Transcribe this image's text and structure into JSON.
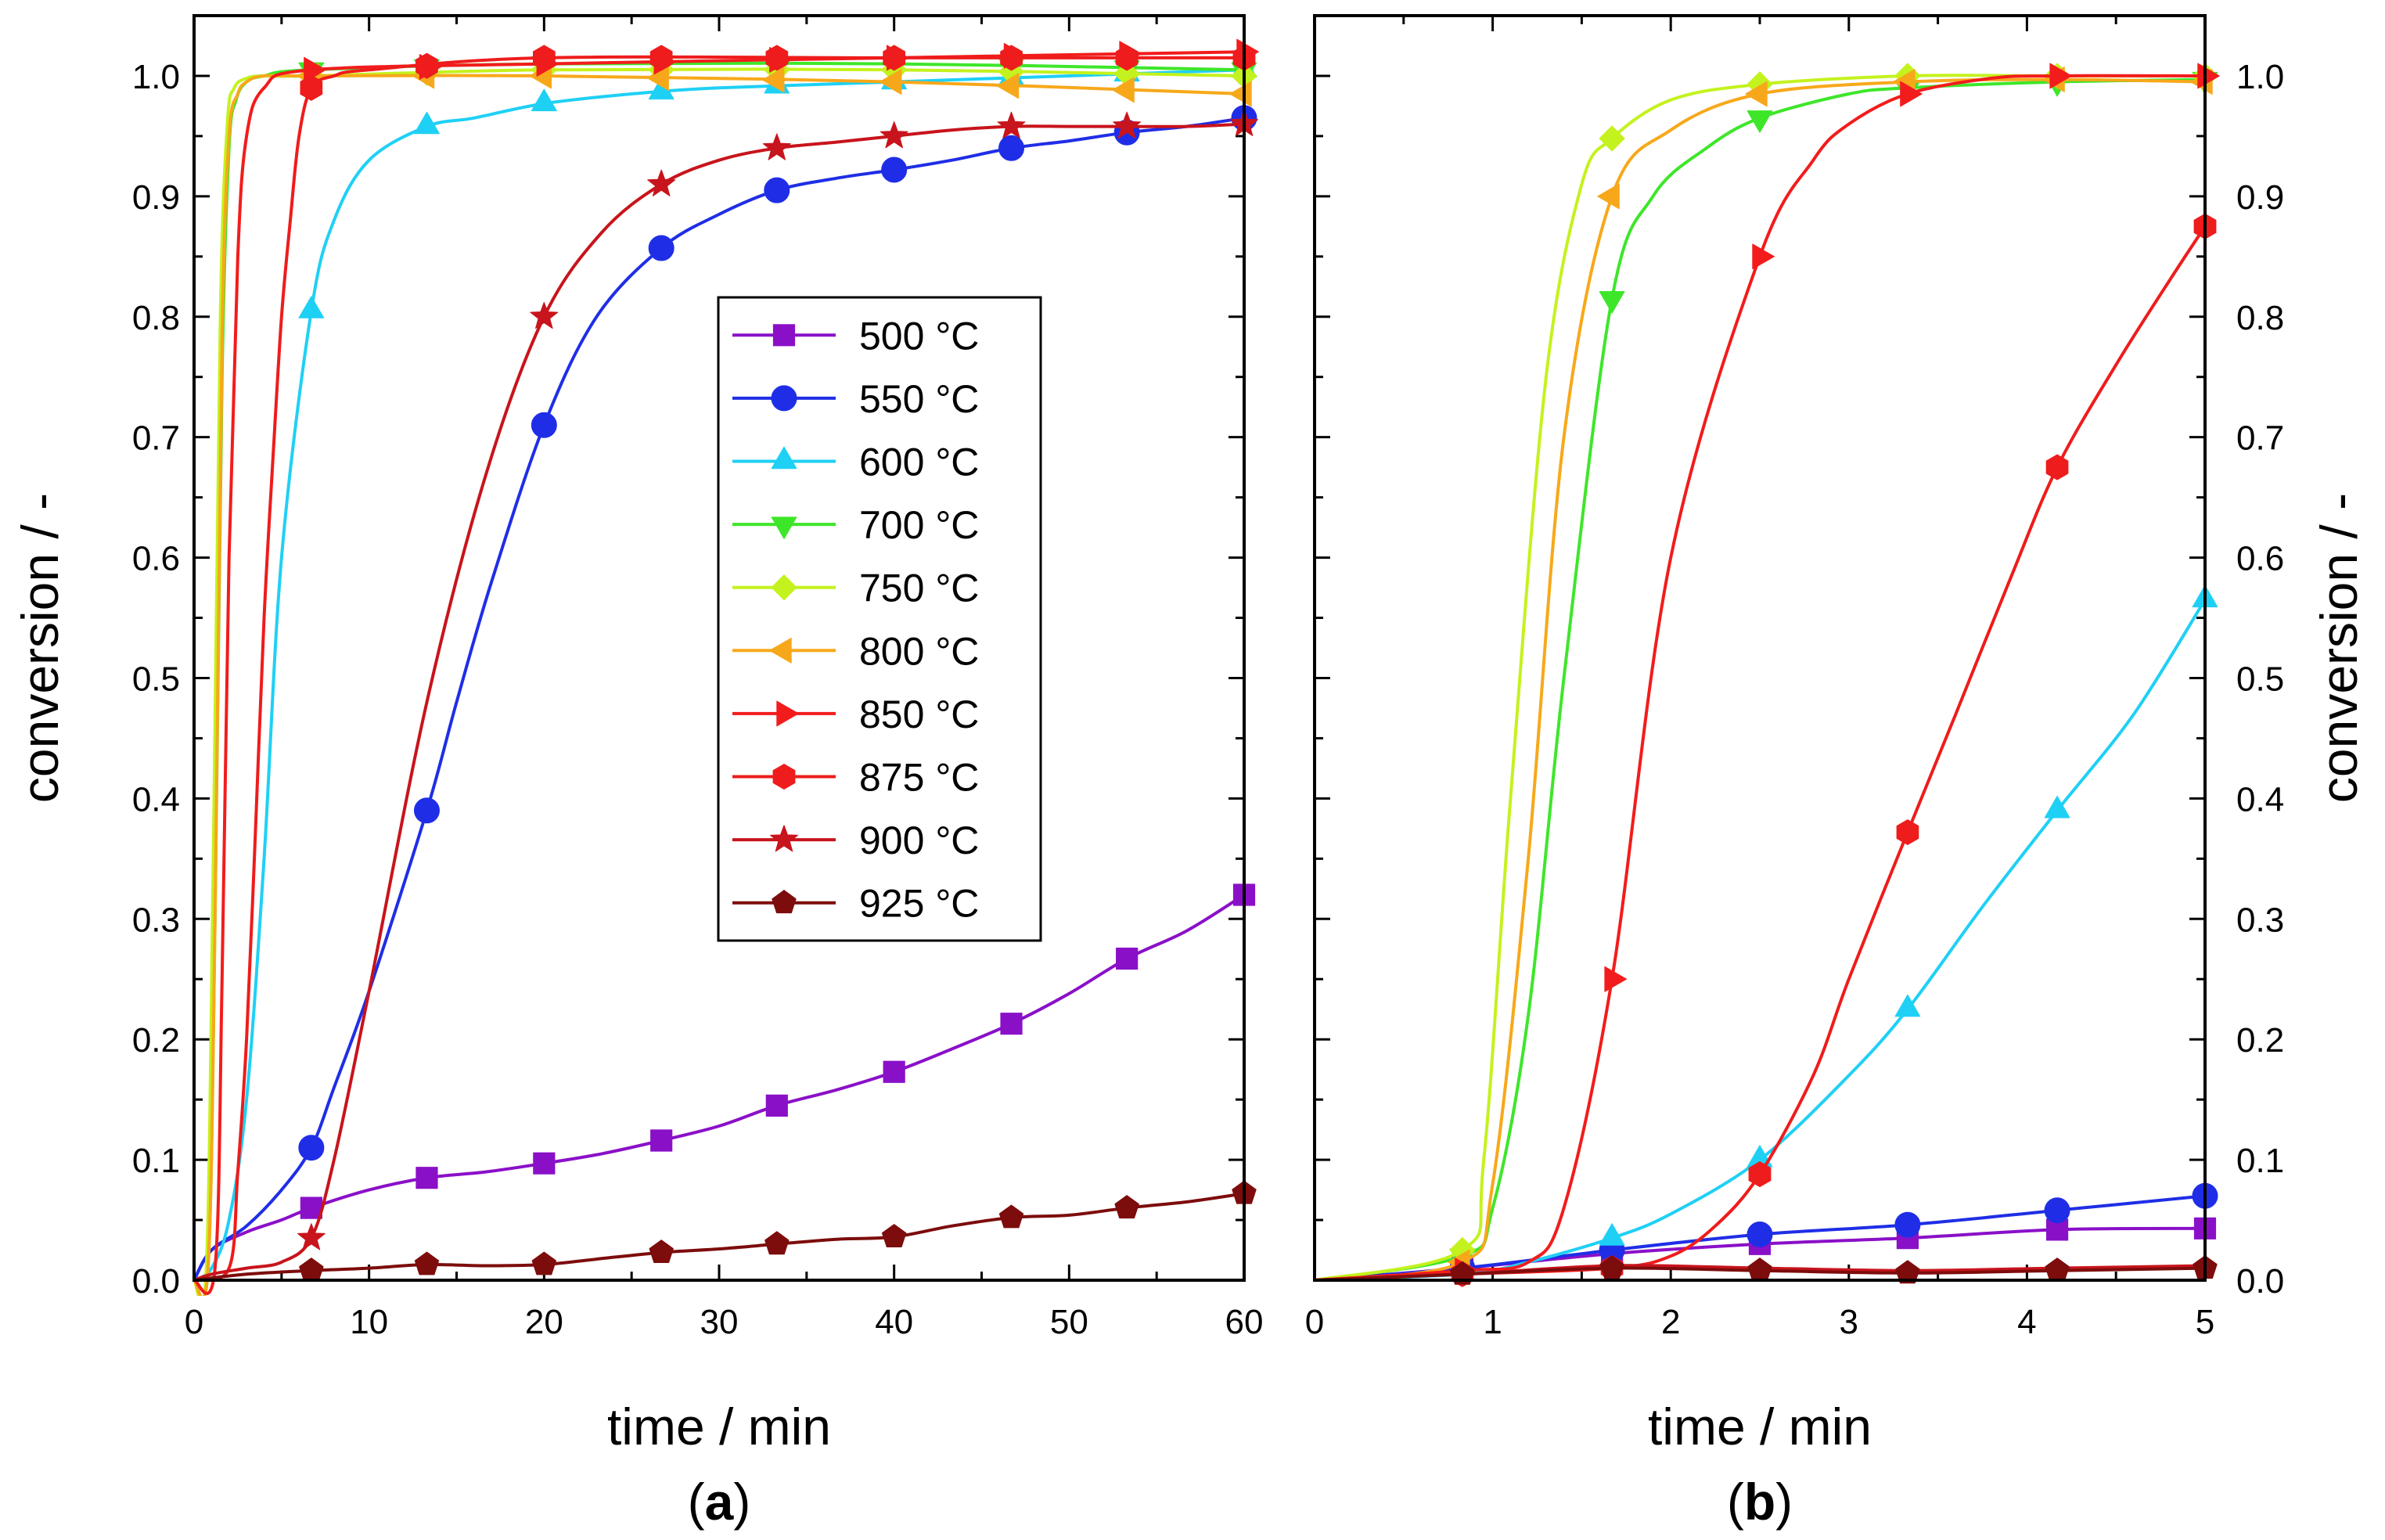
{
  "colors": {
    "500 °C": "#8a10c8",
    "550 °C": "#1f2ee6",
    "600 °C": "#1fd0f5",
    "700 °C": "#3ee62a",
    "750 °C": "#c4f21e",
    "800 °C": "#f7a81a",
    "850 °C": "#f21c1c",
    "875 °C": "#ee1c1c",
    "900 °C": "#c8141c",
    "925 °C": "#7d0c0c"
  },
  "chart_data": [
    {
      "type": "line",
      "panel_label": [
        "(",
        "a",
        ")"
      ],
      "xlabel": "time / min",
      "ylabel": "conversion / -",
      "xlim": [
        0,
        60
      ],
      "ylim": [
        0,
        1.05
      ],
      "xticks": [
        "0",
        "10",
        "20",
        "30",
        "40",
        "50",
        "60"
      ],
      "yticks": [
        "0.0",
        "0.1",
        "0.2",
        "0.3",
        "0.4",
        "0.5",
        "0.6",
        "0.7",
        "0.8",
        "0.9",
        "1.0"
      ],
      "legend": {
        "placement": "center",
        "entries": [
          "500 °C",
          "550 °C",
          "600 °C",
          "700 °C",
          "750 °C",
          "800 °C",
          "850 °C",
          "875 °C",
          "900 °C",
          "925 °C"
        ]
      },
      "series": [
        {
          "name": "500 °C",
          "marker": "square",
          "x": [
            0,
            1,
            3,
            5,
            6.7,
            10,
            13.3,
            16.7,
            20,
            23.3,
            26.7,
            30,
            33.3,
            36.7,
            40,
            43.3,
            46.7,
            50,
            53.3,
            56.7,
            60
          ],
          "y": [
            0.0,
            0.025,
            0.04,
            0.05,
            0.06,
            0.075,
            0.085,
            0.09,
            0.097,
            0.105,
            0.116,
            0.128,
            0.145,
            0.158,
            0.173,
            0.192,
            0.213,
            0.238,
            0.267,
            0.29,
            0.32
          ],
          "markers_x": [
            6.7,
            13.3,
            20,
            26.7,
            33.3,
            40,
            46.7,
            53.3,
            60
          ]
        },
        {
          "name": "550 °C",
          "marker": "circle",
          "x": [
            0,
            1,
            3,
            5,
            6.7,
            8,
            10,
            13.3,
            15,
            17,
            20,
            23,
            26.7,
            30,
            33.3,
            36.7,
            40,
            43.3,
            46.7,
            50,
            53.3,
            56.7,
            60
          ],
          "y": [
            0.0,
            0.025,
            0.045,
            0.075,
            0.11,
            0.16,
            0.24,
            0.39,
            0.48,
            0.58,
            0.71,
            0.8,
            0.857,
            0.885,
            0.905,
            0.915,
            0.922,
            0.93,
            0.94,
            0.946,
            0.953,
            0.958,
            0.965
          ],
          "markers_x": [
            6.7,
            13.3,
            20,
            26.7,
            33.3,
            40,
            46.7,
            53.3,
            60
          ]
        },
        {
          "name": "600 °C",
          "marker": "triangle-up",
          "x": [
            0,
            1,
            2,
            3,
            4,
            5,
            6.7,
            8,
            10,
            13.3,
            16,
            20,
            25,
            30,
            40,
            50,
            60
          ],
          "y": [
            0.0,
            0.01,
            0.05,
            0.15,
            0.35,
            0.6,
            0.805,
            0.88,
            0.93,
            0.958,
            0.965,
            0.977,
            0.985,
            0.99,
            0.995,
            1.0,
            1.005
          ],
          "markers_x": [
            6.7,
            13.3,
            20,
            26.7,
            33.3,
            40,
            46.7,
            53.3,
            60
          ]
        },
        {
          "name": "700 °C",
          "marker": "triangle-down",
          "x": [
            0,
            0.8,
            1.2,
            1.6,
            2,
            2.4,
            3,
            4,
            6.7,
            20,
            40,
            60
          ],
          "y": [
            0.0,
            0.01,
            0.3,
            0.75,
            0.94,
            0.98,
            0.995,
            1.0,
            1.005,
            1.01,
            1.01,
            1.005
          ],
          "markers_x": [
            6.7,
            13.3,
            20,
            26.7,
            33.3,
            40,
            46.7,
            53.3,
            60
          ]
        },
        {
          "name": "750 °C",
          "marker": "diamond",
          "x": [
            0,
            0.7,
            1.1,
            1.5,
            1.9,
            2.3,
            3,
            4,
            6.7,
            20,
            40,
            60
          ],
          "y": [
            0.0,
            0.01,
            0.35,
            0.8,
            0.96,
            0.99,
            0.998,
            1.0,
            1.0,
            1.005,
            1.005,
            1.0
          ],
          "markers_x": [
            6.7,
            13.3,
            20,
            26.7,
            33.3,
            40,
            46.7,
            53.3,
            60
          ]
        },
        {
          "name": "800 °C",
          "marker": "triangle-left",
          "x": [
            0,
            0.8,
            1.2,
            1.6,
            2,
            2.5,
            3,
            4,
            6.7,
            20,
            40,
            60
          ],
          "y": [
            0.0,
            0.01,
            0.3,
            0.78,
            0.95,
            0.985,
            0.995,
            1.0,
            1.0,
            1.0,
            0.995,
            0.985
          ],
          "markers_x": [
            6.7,
            13.3,
            20,
            26.7,
            33.3,
            40,
            46.7,
            53.3,
            60
          ]
        },
        {
          "name": "850 °C",
          "marker": "triangle-right",
          "x": [
            0,
            1.2,
            1.6,
            2,
            2.5,
            3,
            4,
            6.7,
            20,
            40,
            60
          ],
          "y": [
            0.0,
            0.01,
            0.25,
            0.6,
            0.85,
            0.95,
            0.99,
            1.005,
            1.01,
            1.015,
            1.02
          ],
          "markers_x": [
            6.7,
            13.3,
            20,
            26.7,
            33.3,
            40,
            46.7,
            53.3,
            60
          ]
        },
        {
          "name": "875 °C",
          "marker": "hexagon",
          "x": [
            0,
            2,
            2.5,
            3,
            3.5,
            4,
            4.5,
            5,
            5.5,
            6,
            6.7,
            8,
            10,
            20,
            40,
            60
          ],
          "y": [
            0.0,
            0.01,
            0.09,
            0.2,
            0.37,
            0.55,
            0.68,
            0.8,
            0.88,
            0.95,
            0.99,
            1.0,
            1.005,
            1.015,
            1.015,
            1.015
          ],
          "markers_x": [
            6.7,
            13.3,
            20,
            26.7,
            33.3,
            40,
            46.7,
            53.3,
            60
          ]
        },
        {
          "name": "900 °C",
          "marker": "star",
          "x": [
            0,
            1,
            3,
            5,
            6.7,
            8,
            10,
            13.3,
            16.7,
            20,
            23.3,
            26.7,
            30,
            33.3,
            36.7,
            40,
            43.3,
            46.7,
            50,
            53.3,
            56.7,
            60
          ],
          "y": [
            0.0,
            0.005,
            0.01,
            0.015,
            0.035,
            0.1,
            0.24,
            0.48,
            0.67,
            0.8,
            0.87,
            0.91,
            0.93,
            0.94,
            0.945,
            0.95,
            0.955,
            0.958,
            0.958,
            0.958,
            0.958,
            0.96
          ],
          "markers_x": [
            6.7,
            20,
            26.7,
            33.3,
            40,
            46.7,
            53.3,
            60
          ]
        },
        {
          "name": "925 °C",
          "marker": "pentagon",
          "x": [
            0,
            3,
            6.7,
            10,
            13.3,
            16.7,
            20,
            23.3,
            26.7,
            30,
            33.3,
            36.7,
            40,
            43.3,
            46.7,
            50,
            53.3,
            56.7,
            60
          ],
          "y": [
            0.0,
            0.005,
            0.008,
            0.01,
            0.013,
            0.012,
            0.013,
            0.018,
            0.023,
            0.026,
            0.03,
            0.034,
            0.036,
            0.045,
            0.052,
            0.054,
            0.06,
            0.065,
            0.072
          ],
          "markers_x": [
            6.7,
            13.3,
            20,
            26.7,
            33.3,
            40,
            46.7,
            53.3,
            60
          ]
        }
      ]
    },
    {
      "type": "line",
      "panel_label": [
        "(",
        "b",
        ")"
      ],
      "xlabel": "time / min",
      "ylabel": "conversion / -",
      "xlim": [
        0,
        5
      ],
      "ylim": [
        0,
        1.05
      ],
      "xticks": [
        "0",
        "1",
        "2",
        "3",
        "4",
        "5"
      ],
      "yticks": [
        "0.0",
        "0.1",
        "0.2",
        "0.3",
        "0.4",
        "0.5",
        "0.6",
        "0.7",
        "0.8",
        "0.9",
        "1.0"
      ],
      "series": [
        {
          "name": "500 °C",
          "marker": "square",
          "x": [
            0,
            0.83,
            1.67,
            2.5,
            3.33,
            4.17,
            5
          ],
          "y": [
            0.0,
            0.01,
            0.022,
            0.03,
            0.035,
            0.042,
            0.043
          ],
          "markers_x": [
            0.83,
            1.67,
            2.5,
            3.33,
            4.17,
            5
          ]
        },
        {
          "name": "550 °C",
          "marker": "circle",
          "x": [
            0,
            0.83,
            1.67,
            2.5,
            3.33,
            4.17,
            5
          ],
          "y": [
            0.0,
            0.01,
            0.025,
            0.038,
            0.046,
            0.058,
            0.07
          ],
          "markers_x": [
            0.83,
            1.67,
            2.5,
            3.33,
            4.17,
            5
          ]
        },
        {
          "name": "600 °C",
          "marker": "triangle-up",
          "x": [
            0,
            0.83,
            1.2,
            1.67,
            2,
            2.5,
            3,
            3.33,
            3.75,
            4.17,
            4.6,
            5
          ],
          "y": [
            0.0,
            0.005,
            0.015,
            0.035,
            0.055,
            0.1,
            0.17,
            0.225,
            0.31,
            0.39,
            0.47,
            0.565
          ],
          "markers_x": [
            1.67,
            2.5,
            3.33,
            4.17,
            5
          ]
        },
        {
          "name": "700 °C",
          "marker": "triangle-down",
          "x": [
            0,
            0.83,
            1.0,
            1.2,
            1.4,
            1.67,
            1.9,
            2.2,
            2.5,
            3.0,
            3.33,
            4.17,
            5
          ],
          "y": [
            0.0,
            0.02,
            0.06,
            0.22,
            0.5,
            0.815,
            0.9,
            0.94,
            0.965,
            0.985,
            0.99,
            0.995,
            0.997
          ],
          "markers_x": [
            0.83,
            1.67,
            2.5,
            3.33,
            4.17,
            5
          ]
        },
        {
          "name": "750 °C",
          "marker": "diamond",
          "x": [
            0,
            0.83,
            0.95,
            1.1,
            1.3,
            1.5,
            1.67,
            2.0,
            2.5,
            3.33,
            4.17,
            5
          ],
          "y": [
            0.0,
            0.025,
            0.1,
            0.4,
            0.75,
            0.91,
            0.948,
            0.98,
            0.993,
            1.0,
            1.0,
            1.0
          ],
          "markers_x": [
            0.83,
            1.67,
            2.5,
            3.33,
            4.17,
            5
          ]
        },
        {
          "name": "800 °C",
          "marker": "triangle-left",
          "x": [
            0,
            0.83,
            1.0,
            1.2,
            1.4,
            1.67,
            2.0,
            2.5,
            3.33,
            4.17,
            5
          ],
          "y": [
            0.0,
            0.015,
            0.08,
            0.35,
            0.7,
            0.9,
            0.955,
            0.985,
            0.995,
            0.997,
            0.995
          ],
          "markers_x": [
            0.83,
            1.67,
            2.5,
            3.33,
            4.17,
            5
          ]
        },
        {
          "name": "850 °C",
          "marker": "triangle-right",
          "x": [
            0,
            0.83,
            1.2,
            1.4,
            1.67,
            2.0,
            2.5,
            2.8,
            3.0,
            3.33,
            3.8,
            4.17,
            5
          ],
          "y": [
            0.0,
            0.008,
            0.015,
            0.06,
            0.25,
            0.6,
            0.85,
            0.93,
            0.96,
            0.985,
            0.998,
            1.0,
            1.0
          ],
          "markers_x": [
            0.83,
            1.67,
            2.5,
            3.33,
            4.17,
            5
          ]
        },
        {
          "name": "875 °C",
          "marker": "hexagon",
          "x": [
            0,
            0.83,
            1.67,
            2.0,
            2.25,
            2.5,
            2.8,
            3.0,
            3.33,
            3.6,
            3.9,
            4.17,
            4.5,
            4.8,
            5
          ],
          "y": [
            0.0,
            0.005,
            0.01,
            0.02,
            0.045,
            0.088,
            0.17,
            0.25,
            0.372,
            0.47,
            0.58,
            0.675,
            0.76,
            0.83,
            0.875
          ],
          "markers_x": [
            0.83,
            1.67,
            2.5,
            3.33,
            4.17,
            5
          ]
        },
        {
          "name": "900 °C",
          "marker": "star",
          "x": [
            0,
            0.83,
            1.67,
            2.5,
            3.33,
            4.17,
            5
          ],
          "y": [
            0.0,
            0.005,
            0.012,
            0.01,
            0.008,
            0.01,
            0.012
          ],
          "markers_x": []
        },
        {
          "name": "925 °C",
          "marker": "pentagon",
          "x": [
            0,
            0.83,
            1.67,
            2.5,
            3.33,
            4.17,
            5
          ],
          "y": [
            0.0,
            0.005,
            0.01,
            0.008,
            0.006,
            0.008,
            0.01
          ],
          "markers_x": [
            0.83,
            1.67,
            2.5,
            3.33,
            4.17,
            5
          ]
        }
      ]
    }
  ]
}
